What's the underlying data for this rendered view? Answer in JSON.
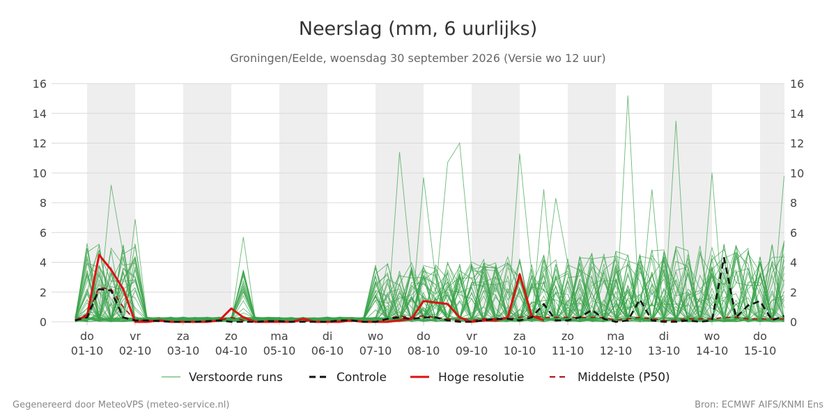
{
  "title": "Neerslag (mm, 6 uurlijks)",
  "subtitle": "Groningen/Eelde, woensdag 30 september 2026 (Versie wo 12 uur)",
  "footer": {
    "left": "Gegenereerd door MeteoVPS (meteo-service.nl)",
    "right": "Bron: ECMWF AIFS/KNMI Ens"
  },
  "colors": {
    "ensemble": "#3aa34a",
    "control": "#111111",
    "high_res": "#dd1111",
    "p50": "#aa1111",
    "band": "#eeeeee",
    "grid": "#d9d9d9"
  },
  "chart_data": {
    "type": "line",
    "title": "Neerslag (mm, 6 uurlijks)",
    "xlabel": "",
    "ylabel": "",
    "ylim": [
      0,
      16
    ],
    "yticks": [
      0,
      2,
      4,
      6,
      8,
      10,
      12,
      14,
      16
    ],
    "y_axis_both_sides": true,
    "grid": "horizontal",
    "x_unit": "days from 01-10 00:00",
    "xlim": [
      -0.25,
      14.5
    ],
    "shaded_days": [
      [
        0,
        1
      ],
      [
        2,
        3
      ],
      [
        4,
        5
      ],
      [
        6,
        7
      ],
      [
        8,
        9
      ],
      [
        10,
        11
      ],
      [
        12,
        13
      ],
      [
        14,
        15
      ]
    ],
    "x_ticks": [
      {
        "day": "do",
        "date": "01-10"
      },
      {
        "day": "vr",
        "date": "02-10"
      },
      {
        "day": "za",
        "date": "03-10"
      },
      {
        "day": "zo",
        "date": "04-10"
      },
      {
        "day": "ma",
        "date": "05-10"
      },
      {
        "day": "di",
        "date": "06-10"
      },
      {
        "day": "wo",
        "date": "07-10"
      },
      {
        "day": "do",
        "date": "08-10"
      },
      {
        "day": "vr",
        "date": "09-10"
      },
      {
        "day": "za",
        "date": "10-10"
      },
      {
        "day": "zo",
        "date": "11-10"
      },
      {
        "day": "ma",
        "date": "12-10"
      },
      {
        "day": "di",
        "date": "13-10"
      },
      {
        "day": "wo",
        "date": "14-10"
      },
      {
        "day": "do",
        "date": "15-10"
      }
    ],
    "legend_position": "bottom",
    "ensemble_count": 50,
    "ensemble_peaks": [
      {
        "x": 0.5,
        "y": 9.2
      },
      {
        "x": 1.0,
        "y": 6.9
      },
      {
        "x": 3.25,
        "y": 5.7
      },
      {
        "x": 6.5,
        "y": 11.4
      },
      {
        "x": 7.0,
        "y": 9.7
      },
      {
        "x": 7.5,
        "y": 10.7
      },
      {
        "x": 7.75,
        "y": 12.0
      },
      {
        "x": 9.0,
        "y": 11.3
      },
      {
        "x": 9.5,
        "y": 8.9
      },
      {
        "x": 9.75,
        "y": 8.3
      },
      {
        "x": 11.25,
        "y": 15.2
      },
      {
        "x": 11.75,
        "y": 8.9
      },
      {
        "x": 12.25,
        "y": 13.5
      },
      {
        "x": 13.0,
        "y": 10.0
      },
      {
        "x": 14.5,
        "y": 9.8
      }
    ],
    "series": [
      {
        "name": "Verstoorde runs",
        "style": "thin-green",
        "x": [],
        "values": []
      },
      {
        "name": "Controle",
        "style": "black-dashed",
        "x": [
          -0.25,
          0,
          0.25,
          0.5,
          0.75,
          1,
          1.25,
          1.5,
          1.75,
          2,
          2.25,
          2.5,
          2.75,
          3,
          3.25,
          3.5,
          3.75,
          4,
          4.25,
          4.5,
          4.75,
          5,
          5.25,
          5.5,
          5.75,
          6,
          6.25,
          6.5,
          6.75,
          7,
          7.25,
          7.5,
          7.75,
          8,
          8.25,
          8.5,
          8.75,
          9,
          9.25,
          9.5,
          9.75,
          10,
          10.25,
          10.5,
          10.75,
          11,
          11.25,
          11.5,
          11.75,
          12,
          12.25,
          12.5,
          12.75,
          13,
          13.25,
          13.5,
          13.75,
          14,
          14.25,
          14.5
        ],
        "values": [
          0.1,
          0.3,
          2.2,
          2.1,
          0.3,
          0.1,
          0.1,
          0.05,
          0.0,
          0.0,
          0.0,
          0.05,
          0.1,
          0.0,
          0.0,
          0.0,
          0.05,
          0.05,
          0.0,
          0.0,
          0.0,
          0.0,
          0.1,
          0.1,
          0.0,
          0.0,
          0.2,
          0.3,
          0.2,
          0.3,
          0.3,
          0.1,
          0.0,
          0.0,
          0.1,
          0.2,
          0.2,
          0.1,
          0.3,
          1.2,
          0.1,
          0.1,
          0.3,
          0.8,
          0.2,
          0.0,
          0.1,
          1.5,
          0.1,
          0.0,
          0.0,
          0.1,
          0.0,
          0.1,
          4.3,
          0.3,
          1.1,
          1.4,
          0.1,
          0.4
        ]
      },
      {
        "name": "Hoge resolutie",
        "style": "red-thick",
        "x": [
          -0.25,
          0,
          0.25,
          0.5,
          0.75,
          1,
          1.25,
          1.5,
          1.75,
          2,
          2.25,
          2.5,
          2.75,
          3,
          3.25,
          3.5,
          3.75,
          4,
          4.25,
          4.5,
          4.75,
          5,
          5.25,
          5.5,
          5.75,
          6,
          6.25,
          6.5,
          6.75,
          7,
          7.25,
          7.5,
          7.75,
          8,
          8.25,
          8.5,
          8.75,
          9,
          9.25,
          9.5
        ],
        "values": [
          0.1,
          0.4,
          4.5,
          3.5,
          2.2,
          0.0,
          0.0,
          0.1,
          0.0,
          0.0,
          0.0,
          0.0,
          0.1,
          0.9,
          0.3,
          0.0,
          0.0,
          0.0,
          0.0,
          0.2,
          0.0,
          0.0,
          0.0,
          0.1,
          0.0,
          0.0,
          0.0,
          0.1,
          0.2,
          1.4,
          1.3,
          1.2,
          0.3,
          0.0,
          0.1,
          0.1,
          0.3,
          3.2,
          0.4,
          0.1
        ]
      },
      {
        "name": "Middelste (P50)",
        "style": "darkred-dashed",
        "x": [
          -0.25,
          0,
          0.25,
          0.5,
          0.75,
          1,
          1.25,
          1.5,
          1.75,
          2,
          2.25,
          2.5,
          2.75,
          3,
          3.25,
          3.5,
          3.75,
          4,
          4.25,
          4.5,
          4.75,
          5,
          5.25,
          5.5,
          5.75,
          6,
          6.25,
          6.5,
          6.75,
          7,
          7.25,
          7.5,
          7.75,
          8,
          8.25,
          8.5,
          8.75,
          9,
          9.25,
          9.5,
          9.75,
          10,
          10.25,
          10.5,
          10.75,
          11,
          11.25,
          11.5,
          11.75,
          12,
          12.25,
          12.5,
          12.75,
          13,
          13.25,
          13.5,
          13.75,
          14,
          14.25,
          14.5
        ],
        "values": [
          0.1,
          0.5,
          2.3,
          2.2,
          1.0,
          0.1,
          0.1,
          0.05,
          0.0,
          0.0,
          0.0,
          0.0,
          0.1,
          0.3,
          0.1,
          0.0,
          0.05,
          0.05,
          0.0,
          0.05,
          0.0,
          0.0,
          0.05,
          0.05,
          0.0,
          0.0,
          0.2,
          0.4,
          0.3,
          0.4,
          0.3,
          0.2,
          0.1,
          0.1,
          0.2,
          0.2,
          0.2,
          0.3,
          0.4,
          0.3,
          0.3,
          0.3,
          0.3,
          0.3,
          0.3,
          0.1,
          0.2,
          0.3,
          0.2,
          0.1,
          0.1,
          0.2,
          0.2,
          0.2,
          0.3,
          0.3,
          0.2,
          0.2,
          0.2,
          0.2
        ]
      }
    ]
  }
}
